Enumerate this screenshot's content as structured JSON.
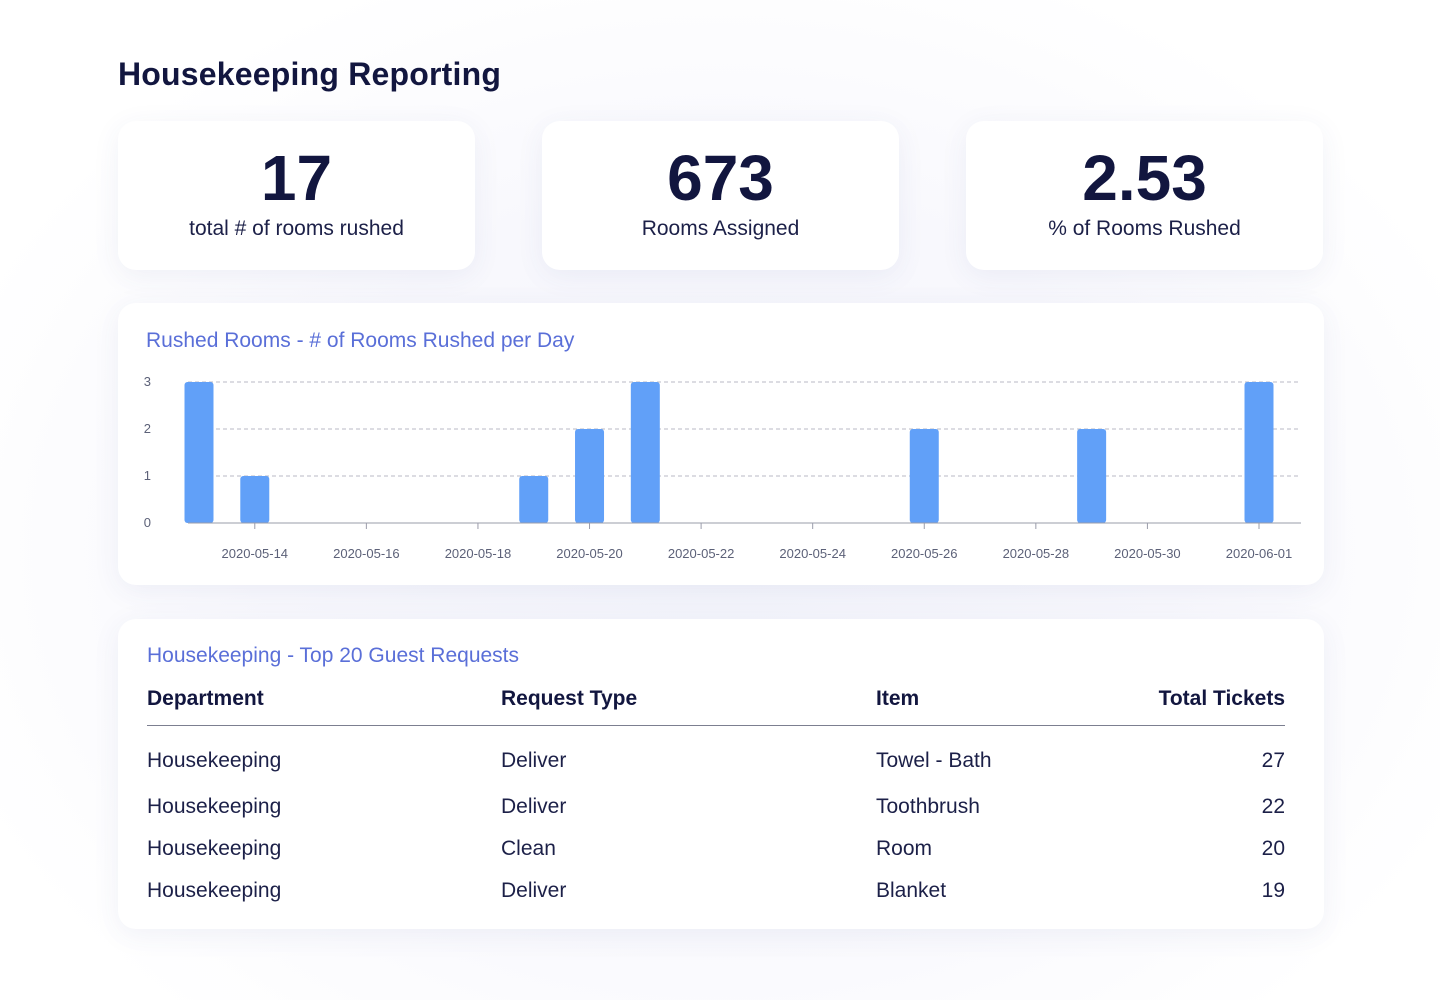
{
  "page": {
    "title": "Housekeeping Reporting"
  },
  "kpis": [
    {
      "value": "17",
      "label": "total # of rooms rushed"
    },
    {
      "value": "673",
      "label": "Rooms Assigned"
    },
    {
      "value": "2.53",
      "label": "% of Rooms Rushed"
    }
  ],
  "chart": {
    "section_title": "Rushed Rooms - # of Rooms Rushed per Day"
  },
  "chart_data": {
    "type": "bar",
    "title": "Rushed Rooms - # of Rooms Rushed per Day",
    "xlabel": "",
    "ylabel": "",
    "x_type": "date",
    "xlim": [
      "2020-05-13",
      "2020-06-01"
    ],
    "ylim": [
      0,
      3
    ],
    "yticks": [
      0,
      1,
      2,
      3
    ],
    "xticks": [
      "2020-05-14",
      "2020-05-16",
      "2020-05-18",
      "2020-05-20",
      "2020-05-22",
      "2020-05-24",
      "2020-05-26",
      "2020-05-28",
      "2020-05-30",
      "2020-06-01"
    ],
    "grid": "horizontal dashed",
    "bar_color": "#61a0f8",
    "points": [
      {
        "x": "2020-05-13",
        "y": 3
      },
      {
        "x": "2020-05-14",
        "y": 1
      },
      {
        "x": "2020-05-19",
        "y": 1
      },
      {
        "x": "2020-05-20",
        "y": 2
      },
      {
        "x": "2020-05-21",
        "y": 3
      },
      {
        "x": "2020-05-26",
        "y": 2
      },
      {
        "x": "2020-05-29",
        "y": 2
      },
      {
        "x": "2020-06-01",
        "y": 3
      }
    ]
  },
  "requests_table": {
    "section_title": "Housekeeping - Top 20 Guest Requests",
    "columns": [
      "Department",
      "Request Type",
      "Item",
      "Total Tickets"
    ],
    "rows": [
      [
        "Housekeeping",
        "Deliver",
        "Towel - Bath",
        "27"
      ],
      [
        "Housekeeping",
        "Deliver",
        "Toothbrush",
        "22"
      ],
      [
        "Housekeeping",
        "Clean",
        "Room",
        "20"
      ],
      [
        "Housekeeping",
        "Deliver",
        "Blanket",
        "19"
      ]
    ]
  },
  "colors": {
    "heading": "#12163f",
    "section_title": "#5a6fd8",
    "bar": "#61a0f8",
    "grid": "#b8bac4"
  }
}
